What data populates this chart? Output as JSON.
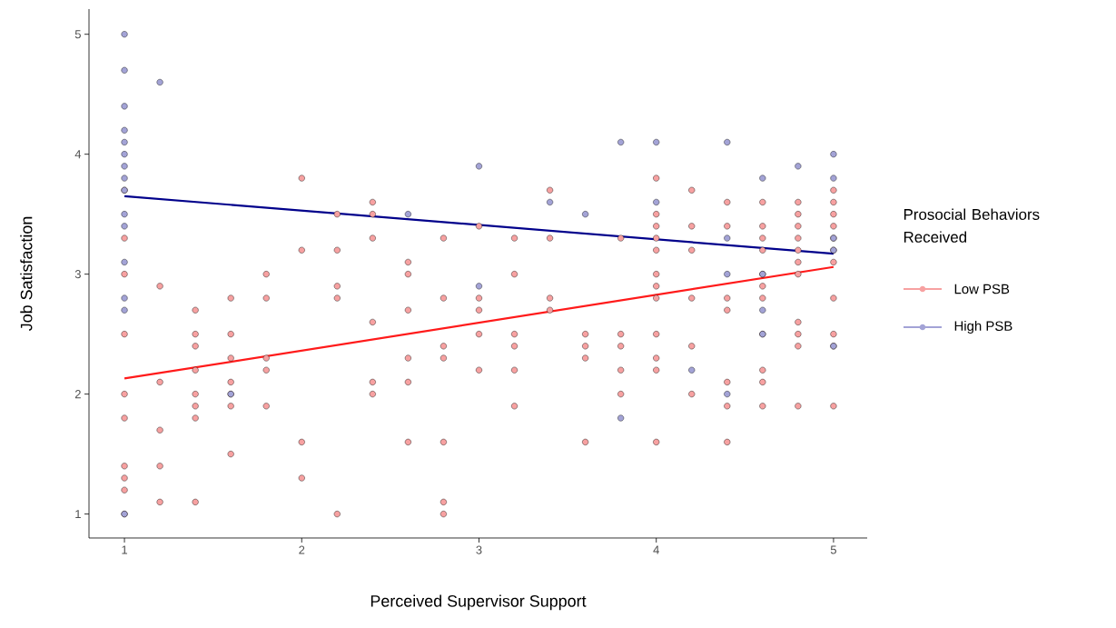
{
  "chart_data": {
    "type": "scatter",
    "xlabel": "Perceived Supervisor Support",
    "ylabel": "Job Satisfaction",
    "legend_title": "Prosocial Behaviors Received",
    "legend": "right",
    "marker": "circle",
    "xlim": [
      0.8,
      5.19
    ],
    "ylim": [
      0.8,
      5.21
    ],
    "xticks": [
      1,
      2,
      3,
      4,
      5
    ],
    "yticks": [
      1,
      2,
      3,
      4,
      5
    ],
    "series": [
      {
        "name": "Low PSB",
        "color": "#f7a1a1",
        "x": [
          1,
          1,
          1,
          1,
          1,
          1,
          1,
          1,
          1,
          1,
          1.2,
          1.2,
          1.2,
          1.2,
          1.2,
          1.4,
          1.4,
          1.4,
          1.4,
          1.4,
          1.4,
          1.4,
          1.4,
          1.6,
          1.6,
          1.6,
          1.6,
          1.6,
          1.6,
          1.6,
          1.8,
          1.8,
          1.8,
          1.8,
          1.8,
          2,
          2,
          2,
          2,
          2.2,
          2.2,
          2.2,
          2.2,
          2.2,
          2.4,
          2.4,
          2.4,
          2.4,
          2.4,
          2.4,
          2.6,
          2.6,
          2.6,
          2.6,
          2.6,
          2.6,
          2.8,
          2.8,
          2.8,
          2.8,
          2.8,
          2.8,
          2.8,
          3,
          3,
          3,
          3,
          3,
          3.2,
          3.2,
          3.2,
          3.2,
          3.2,
          3.2,
          3.4,
          3.4,
          3.4,
          3.4,
          3.6,
          3.6,
          3.6,
          3.6,
          3.8,
          3.8,
          3.8,
          3.8,
          3.8,
          4,
          4,
          4,
          4,
          4,
          4,
          4,
          4,
          4,
          4,
          4,
          4,
          4.2,
          4.2,
          4.2,
          4.2,
          4.2,
          4.2,
          4.4,
          4.4,
          4.4,
          4.4,
          4.4,
          4.4,
          4.4,
          4.6,
          4.6,
          4.6,
          4.6,
          4.6,
          4.6,
          4.6,
          4.6,
          4.6,
          4.6,
          4.6,
          4.8,
          4.8,
          4.8,
          4.8,
          4.8,
          4.8,
          4.8,
          4.8,
          4.8,
          4.8,
          4.8,
          5,
          5,
          5,
          5,
          5,
          5,
          5,
          5,
          5,
          5,
          5
        ],
        "values": [
          3.7,
          3.3,
          3.0,
          2.5,
          2.0,
          1.8,
          1.4,
          1.3,
          1.2,
          1.0,
          2.9,
          2.1,
          1.7,
          1.4,
          1.1,
          2.7,
          2.5,
          2.4,
          2.2,
          2.0,
          1.9,
          1.8,
          1.1,
          2.8,
          2.5,
          2.3,
          2.1,
          2.0,
          1.9,
          1.5,
          3.0,
          2.8,
          2.3,
          2.2,
          1.9,
          3.8,
          3.2,
          1.6,
          1.3,
          3.5,
          3.2,
          2.9,
          2.8,
          1.0,
          3.6,
          3.5,
          3.3,
          2.6,
          2.1,
          2.0,
          3.1,
          3.0,
          2.7,
          2.3,
          2.1,
          1.6,
          3.3,
          2.8,
          2.4,
          2.3,
          1.6,
          1.1,
          1.0,
          3.4,
          2.8,
          2.7,
          2.5,
          2.2,
          3.3,
          3.0,
          2.5,
          2.4,
          2.2,
          1.9,
          3.7,
          3.3,
          2.8,
          2.7,
          2.5,
          2.4,
          2.3,
          1.6,
          3.3,
          2.5,
          2.4,
          2.2,
          2.0,
          3.8,
          3.5,
          3.4,
          3.3,
          3.2,
          3.0,
          2.9,
          2.8,
          2.5,
          2.3,
          2.2,
          1.6,
          3.7,
          3.4,
          3.2,
          2.8,
          2.4,
          2.0,
          3.6,
          3.4,
          2.8,
          2.7,
          2.1,
          1.9,
          1.6,
          3.6,
          3.4,
          3.3,
          3.2,
          3.0,
          2.9,
          2.8,
          2.5,
          2.2,
          2.1,
          1.9,
          3.6,
          3.5,
          3.4,
          3.3,
          3.2,
          3.1,
          3.0,
          2.6,
          2.5,
          2.4,
          1.9,
          3.7,
          3.6,
          3.5,
          3.4,
          3.3,
          3.2,
          3.1,
          2.8,
          2.5,
          2.4,
          1.9
        ]
      },
      {
        "name": "High PSB",
        "color": "#a3a3d6",
        "x": [
          1,
          1,
          1,
          1,
          1,
          1,
          1,
          1,
          1,
          1,
          1,
          1,
          1,
          1,
          1,
          1.2,
          1.6,
          2.6,
          3,
          3,
          3.4,
          3.6,
          3.8,
          3.8,
          4,
          4,
          4.2,
          4.4,
          4.4,
          4.4,
          4.4,
          4.6,
          4.6,
          4.6,
          4.6,
          4.8,
          5,
          5,
          5,
          5,
          5
        ],
        "values": [
          5.0,
          4.7,
          4.4,
          4.2,
          4.1,
          4.0,
          3.9,
          3.8,
          3.7,
          3.5,
          3.4,
          3.1,
          2.8,
          2.7,
          1.0,
          4.6,
          2.0,
          3.5,
          3.9,
          2.9,
          3.6,
          3.5,
          4.1,
          1.8,
          4.1,
          3.6,
          2.2,
          4.1,
          3.3,
          3.0,
          2.0,
          3.8,
          3.0,
          2.7,
          2.5,
          3.9,
          4.0,
          3.8,
          3.3,
          3.2,
          2.4
        ]
      },
      {
        "type": "line",
        "marker": "none",
        "color": "#ff1a1a",
        "x": [
          1,
          5
        ],
        "values": [
          2.13,
          3.06
        ]
      },
      {
        "type": "line",
        "marker": "none",
        "color": "#00008b",
        "x": [
          1,
          5
        ],
        "values": [
          3.65,
          3.17
        ]
      }
    ]
  }
}
